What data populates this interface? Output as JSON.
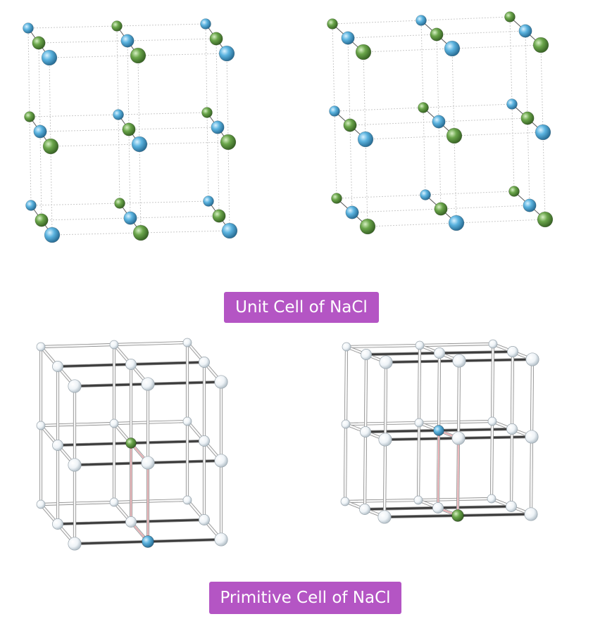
{
  "labels": {
    "unit_cell": "Unit Cell of NaCl",
    "primitive_cell": "Primitive Cell of NaCl"
  },
  "colors": {
    "label_background": "#b455c4",
    "label_text": "#ffffff",
    "sodium_blue": "#5bb3df",
    "chlorine_green": "#6aa54a",
    "pale_atom": "#eef3f7",
    "bond_dark": "#333333",
    "primitive_edge": "#e7a0a6"
  },
  "atom_pattern": {
    "unit_cell_alternation": [
      "sodium_blue",
      "chlorine_green"
    ],
    "unit_cell_left_corner_origin": "sodium_blue",
    "unit_cell_right_corner_origin": "chlorine_green",
    "primitive_left_center": "chlorine_green",
    "primitive_left_apex": "sodium_blue",
    "primitive_right_center": "sodium_blue",
    "primitive_right_apex": "chlorine_green"
  }
}
